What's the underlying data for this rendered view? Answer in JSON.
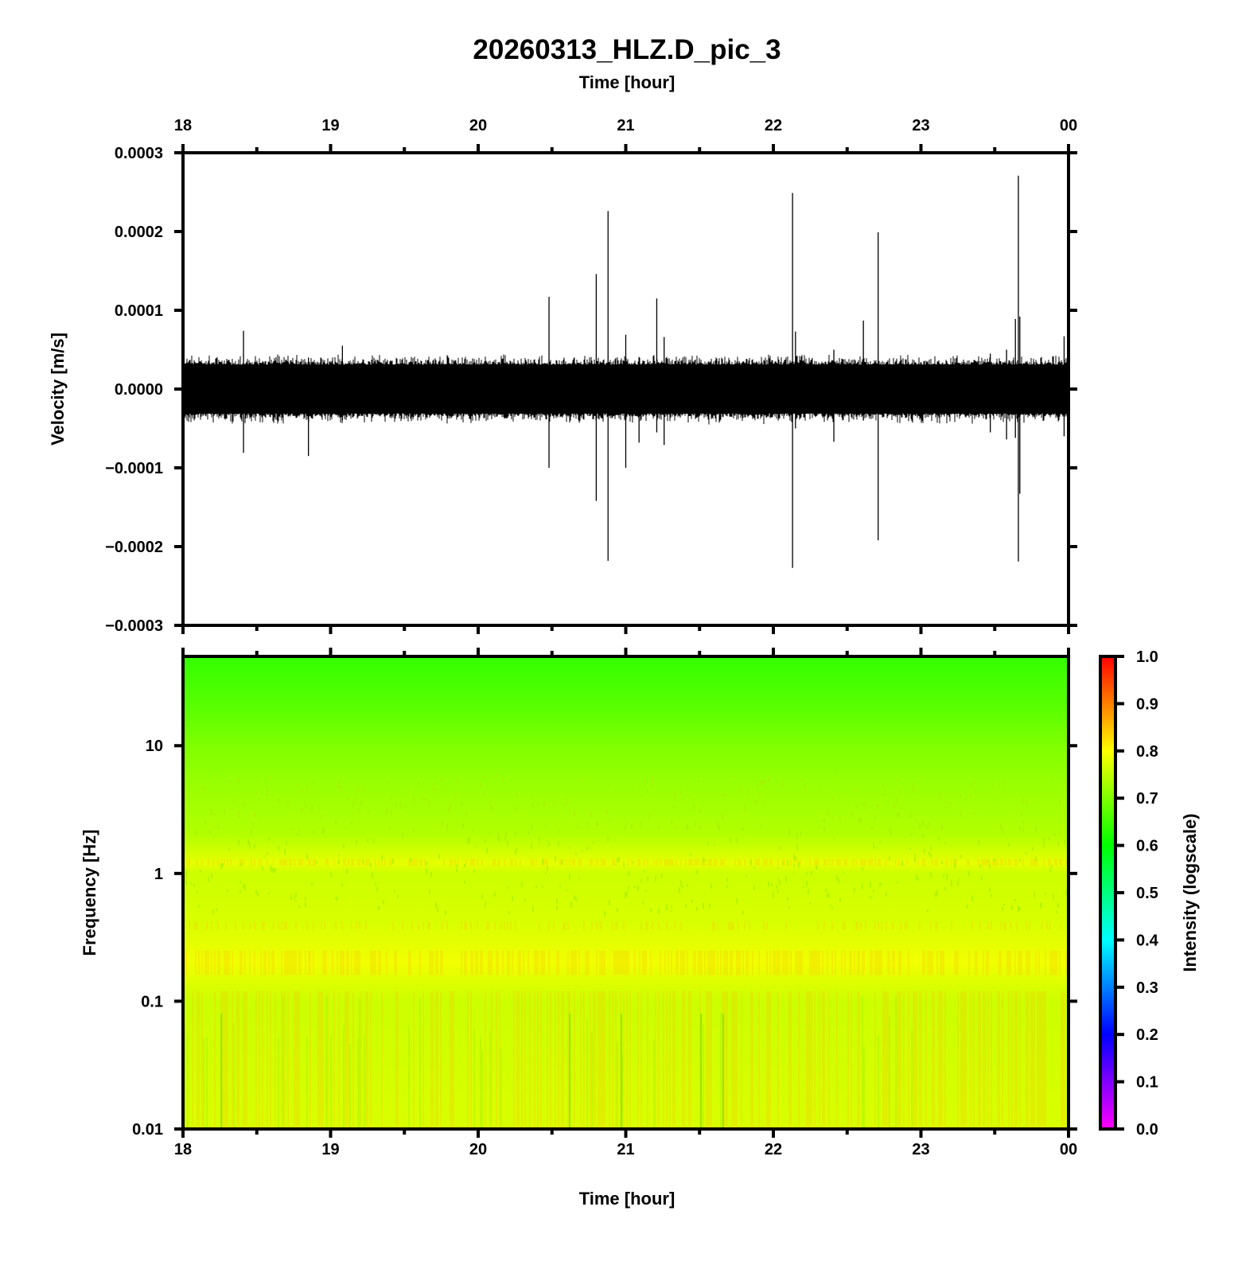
{
  "chart_data": [
    {
      "type": "line",
      "title": "20260313_HLZ.D_pic_3",
      "top_axis_label": "Time [hour]",
      "ylabel": "Velocity [m/s]",
      "x_tick_labels": [
        "18",
        "19",
        "20",
        "21",
        "22",
        "23",
        "00"
      ],
      "xlim_hours": [
        18,
        24
      ],
      "ylim": [
        -0.0003,
        0.0003
      ],
      "y_tick_labels": [
        "0.0003",
        "0.0002",
        "0.0001",
        "0.0000",
        "−0.0001",
        "−0.0002",
        "−0.0003"
      ],
      "y_tick_values": [
        0.0003,
        0.0002,
        0.0001,
        0.0,
        -0.0001,
        -0.0002,
        -0.0003
      ],
      "line_color": "#000000",
      "noise_band_amplitude": 3e-05,
      "spikes": [
        {
          "time_hours": 18.41,
          "max": 7.4e-05,
          "min": -8.1e-05
        },
        {
          "time_hours": 18.85,
          "max": 4e-05,
          "min": -8.5e-05
        },
        {
          "time_hours": 19.08,
          "max": 5.5e-05,
          "min": -4e-05
        },
        {
          "time_hours": 20.48,
          "max": 0.000117,
          "min": -0.0001
        },
        {
          "time_hours": 20.8,
          "max": 0.000146,
          "min": -0.000142
        },
        {
          "time_hours": 20.88,
          "max": 0.000226,
          "min": -0.000218
        },
        {
          "time_hours": 21.0,
          "max": 6.9e-05,
          "min": -0.0001
        },
        {
          "time_hours": 21.09,
          "max": 4e-05,
          "min": -6.8e-05
        },
        {
          "time_hours": 21.21,
          "max": 0.000115,
          "min": -5.5e-05
        },
        {
          "time_hours": 21.26,
          "max": 6.6e-05,
          "min": -7.1e-05
        },
        {
          "time_hours": 22.13,
          "max": 0.000249,
          "min": -0.000227
        },
        {
          "time_hours": 22.15,
          "max": 7.3e-05,
          "min": -5e-05
        },
        {
          "time_hours": 22.41,
          "max": 5e-05,
          "min": -6.7e-05
        },
        {
          "time_hours": 22.61,
          "max": 8.7e-05,
          "min": -4e-05
        },
        {
          "time_hours": 22.71,
          "max": 0.000199,
          "min": -0.000192
        },
        {
          "time_hours": 23.47,
          "max": 4.5e-05,
          "min": -5.5e-05
        },
        {
          "time_hours": 23.58,
          "max": 5e-05,
          "min": -6.4e-05
        },
        {
          "time_hours": 23.64,
          "max": 8.9e-05,
          "min": -6.2e-05
        },
        {
          "time_hours": 23.66,
          "max": 0.000271,
          "min": -0.000219
        },
        {
          "time_hours": 23.67,
          "max": 9.2e-05,
          "min": -0.000133
        },
        {
          "time_hours": 23.97,
          "max": 6.7e-05,
          "min": -6e-05
        }
      ]
    },
    {
      "type": "heatmap",
      "xlabel": "Time [hour]",
      "ylabel": "Frequency [Hz]",
      "x_tick_labels": [
        "18",
        "19",
        "20",
        "21",
        "22",
        "23",
        "00"
      ],
      "xlim_hours": [
        18,
        24
      ],
      "y_scale": "log",
      "ylim": [
        0.01,
        50
      ],
      "y_tick_labels": [
        "10",
        "1",
        "0.1",
        "0.01"
      ],
      "y_tick_values": [
        10,
        1,
        0.1,
        0.01
      ],
      "colorbar": {
        "label": "Intensity (logscale)",
        "range": [
          0.0,
          1.0
        ],
        "tick_labels": [
          "1.0",
          "0.9",
          "0.8",
          "0.7",
          "0.6",
          "0.5",
          "0.4",
          "0.3",
          "0.2",
          "0.1",
          "0.0"
        ],
        "tick_values": [
          1.0,
          0.9,
          0.8,
          0.7,
          0.6,
          0.5,
          0.4,
          0.3,
          0.2,
          0.1,
          0.0
        ],
        "colors": [
          "#ff00ff",
          "#0000ff",
          "#00ffff",
          "#00ff00",
          "#ffff00",
          "#ff0000"
        ]
      },
      "intensity_profile": [
        {
          "frequency_hz": 50,
          "intensity": 0.64
        },
        {
          "frequency_hz": 20,
          "intensity": 0.67
        },
        {
          "frequency_hz": 10,
          "intensity": 0.7
        },
        {
          "frequency_hz": 5,
          "intensity": 0.72
        },
        {
          "frequency_hz": 2,
          "intensity": 0.74
        },
        {
          "frequency_hz": 1.2,
          "intensity": 0.78
        },
        {
          "frequency_hz": 1,
          "intensity": 0.76
        },
        {
          "frequency_hz": 0.4,
          "intensity": 0.77
        },
        {
          "frequency_hz": 0.2,
          "intensity": 0.79
        },
        {
          "frequency_hz": 0.1,
          "intensity": 0.76
        },
        {
          "frequency_hz": 0.01,
          "intensity": 0.77
        }
      ]
    }
  ]
}
